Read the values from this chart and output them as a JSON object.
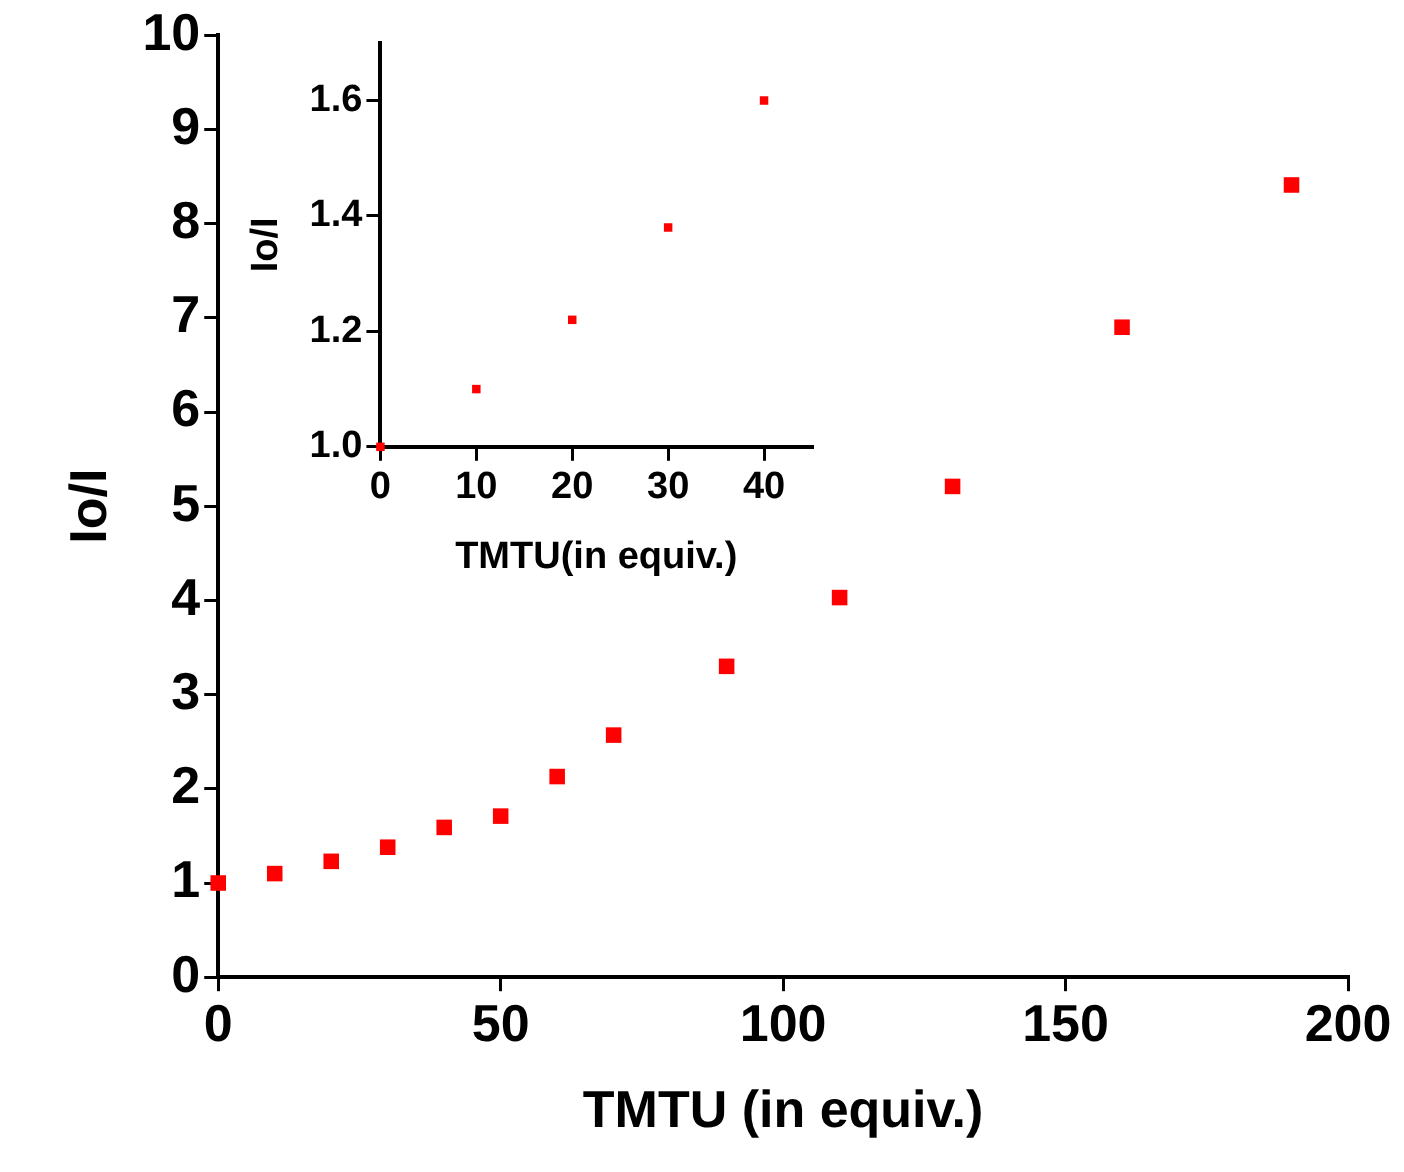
{
  "chart_data": [
    {
      "type": "scatter",
      "xlabel": "TMTU (in equiv.)",
      "ylabel": "Io/I",
      "marker": "square",
      "x": [
        0,
        10,
        20,
        30,
        40,
        50,
        60,
        70,
        90,
        110,
        130,
        160,
        190
      ],
      "series": [
        {
          "color": "#ff0000",
          "values": [
            1.0,
            1.1,
            1.23,
            1.38,
            1.59,
            1.71,
            2.13,
            2.57,
            3.3,
            4.03,
            5.21,
            6.9,
            8.41
          ]
        }
      ],
      "xlim": [
        0,
        200
      ],
      "xticks": [
        0,
        50,
        100,
        150,
        200
      ],
      "ylim": [
        0,
        10
      ],
      "yticks": [
        0,
        1,
        2,
        3,
        4,
        5,
        6,
        7,
        8,
        9,
        10
      ]
    },
    {
      "type": "scatter",
      "xlabel": "TMTU(in equiv.)",
      "ylabel": "Io/I",
      "marker": "square",
      "x": [
        0,
        10,
        20,
        30,
        40
      ],
      "series": [
        {
          "color": "#ff0000",
          "values": [
            1.0,
            1.1,
            1.22,
            1.38,
            1.6
          ]
        }
      ],
      "xlim": [
        0,
        45
      ],
      "xticks": [
        0,
        10,
        20,
        30,
        40
      ],
      "ylim": [
        1.0,
        1.7
      ],
      "yticks": [
        {
          "value": 1.0,
          "label": "1.0"
        },
        {
          "value": 1.2,
          "label": "1.2"
        },
        {
          "value": 1.4,
          "label": "1.4"
        },
        {
          "value": 1.6,
          "label": "1.6"
        }
      ]
    }
  ]
}
